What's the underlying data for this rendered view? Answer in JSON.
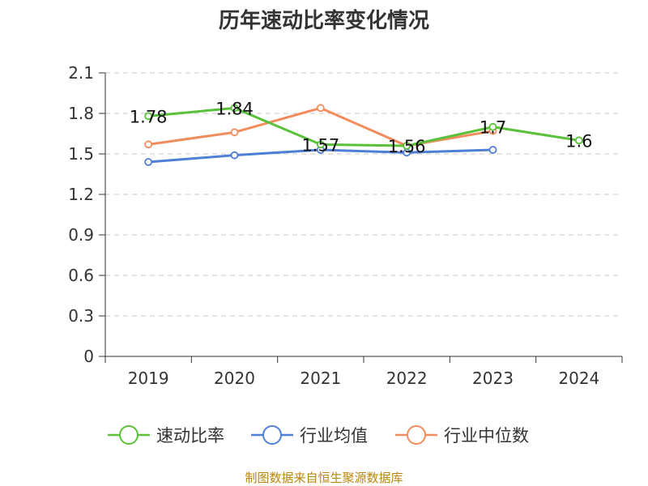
{
  "chart_data": {
    "type": "line",
    "title": "历年速动比率变化情况",
    "categories": [
      "2019",
      "2020",
      "2021",
      "2022",
      "2023",
      "2024"
    ],
    "ylim": [
      0,
      2.1
    ],
    "yticks": [
      "0",
      "0.3",
      "0.6",
      "0.9",
      "1.2",
      "1.5",
      "1.8",
      "2.1"
    ],
    "grid": true,
    "legend_position": "bottom",
    "series": [
      {
        "name": "速动比率",
        "color": "#5ac13a",
        "values": [
          1.78,
          1.84,
          1.57,
          1.56,
          1.7,
          1.6
        ],
        "labels": [
          "1.78",
          "1.84",
          "1.57",
          "1.56",
          "1.7",
          "1.6"
        ]
      },
      {
        "name": "行业均值",
        "color": "#4d7fd6",
        "values": [
          1.44,
          1.49,
          1.53,
          1.51,
          1.53,
          null
        ]
      },
      {
        "name": "行业中位数",
        "color": "#f28c5c",
        "values": [
          1.57,
          1.66,
          1.84,
          1.56,
          1.67,
          null
        ]
      }
    ]
  },
  "footer": {
    "source": "制图数据来自恒生聚源数据库"
  }
}
